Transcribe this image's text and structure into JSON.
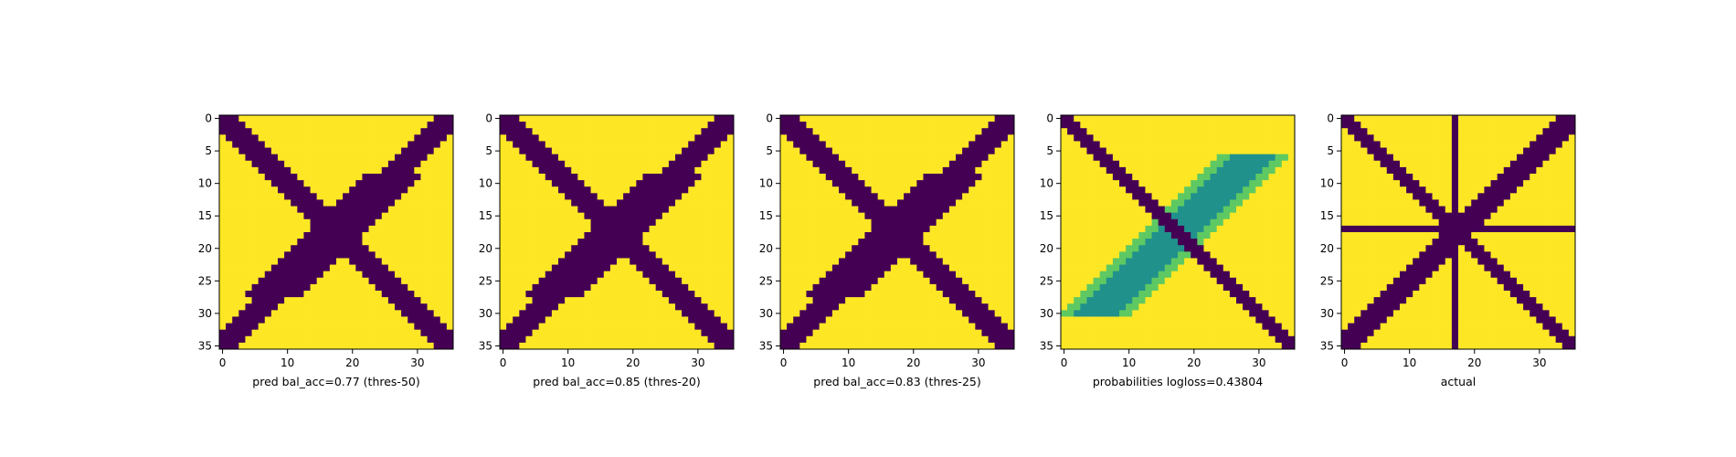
{
  "chart_data": [
    {
      "type": "heatmap",
      "xlabel": "pred bal_acc=0.77 (thres-50)",
      "x_ticks": [
        0,
        10,
        20,
        30
      ],
      "y_ticks": [
        0,
        5,
        10,
        15,
        20,
        25,
        30,
        35
      ],
      "size": 36
    },
    {
      "type": "heatmap",
      "xlabel": "pred bal_acc=0.85 (thres-20)",
      "x_ticks": [
        0,
        10,
        20,
        30
      ],
      "y_ticks": [
        0,
        5,
        10,
        15,
        20,
        25,
        30,
        35
      ],
      "size": 36
    },
    {
      "type": "heatmap",
      "xlabel": "pred bal_acc=0.83 (thres-25)",
      "x_ticks": [
        0,
        10,
        20,
        30
      ],
      "y_ticks": [
        0,
        5,
        10,
        15,
        20,
        25,
        30,
        35
      ],
      "size": 36
    },
    {
      "type": "heatmap",
      "xlabel": "probabilities logloss=0.43804",
      "x_ticks": [
        0,
        10,
        20,
        30
      ],
      "y_ticks": [
        0,
        5,
        10,
        15,
        20,
        25,
        30,
        35
      ],
      "size": 36
    },
    {
      "type": "heatmap",
      "xlabel": "actual",
      "x_ticks": [
        0,
        10,
        20,
        30
      ],
      "y_ticks": [
        0,
        5,
        10,
        15,
        20,
        25,
        30,
        35
      ],
      "size": 36
    }
  ],
  "colors": {
    "low": "#440154",
    "high": "#fde725",
    "mid1": "#21918c",
    "mid2": "#5ec962"
  }
}
